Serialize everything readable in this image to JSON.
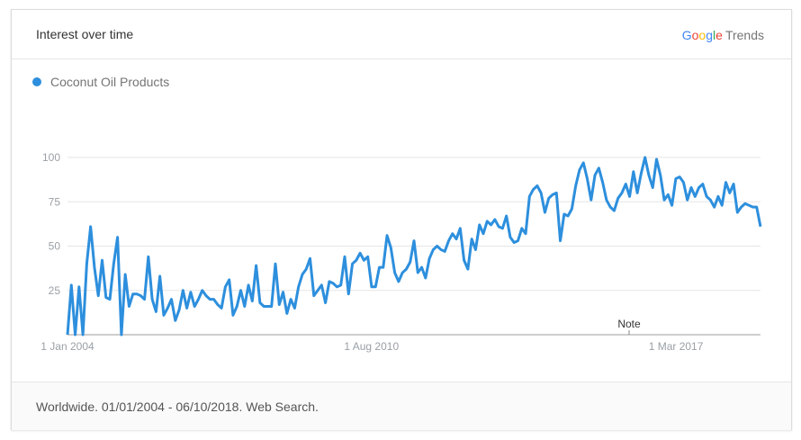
{
  "header": {
    "title": "Interest over time",
    "brand": {
      "google": [
        "G",
        "o",
        "o",
        "g",
        "l",
        "e"
      ],
      "trends": "Trends"
    }
  },
  "legend": {
    "label": "Coconut Oil Products",
    "color": "#2d8fdd"
  },
  "note": "Note",
  "footer": {
    "text": "Worldwide. 01/01/2004 - 06/10/2018. Web Search."
  },
  "chart_data": {
    "type": "line",
    "title": "",
    "xlabel": "",
    "ylabel": "",
    "ylim": [
      0,
      100
    ],
    "yticks": [
      "25",
      "50",
      "75",
      "100"
    ],
    "xticks": [
      {
        "label": "1 Jan 2004",
        "year": 2004.0
      },
      {
        "label": "1 Aug 2010",
        "year": 2010.58
      },
      {
        "label": "1 Mar 2017",
        "year": 2017.17
      }
    ],
    "grid": true,
    "legend_position": "top-left",
    "x_start": "2004-01",
    "x_end": "2018-10",
    "x_interval": "month",
    "series": [
      {
        "name": "Coconut Oil Products",
        "color": "#2d8fdd",
        "values": [
          0,
          28,
          0,
          27,
          0,
          40,
          61,
          38,
          22,
          42,
          21,
          20,
          40,
          55,
          0,
          34,
          16,
          23,
          23,
          22,
          20,
          44,
          20,
          13,
          33,
          11,
          15,
          20,
          8,
          14,
          25,
          15,
          24,
          16,
          20,
          25,
          22,
          20,
          20,
          17,
          15,
          27,
          31,
          11,
          16,
          25,
          16,
          28,
          19,
          39,
          18,
          16,
          16,
          16,
          40,
          17,
          24,
          12,
          20,
          15,
          27,
          34,
          37,
          43,
          22,
          25,
          28,
          18,
          30,
          29,
          27,
          28,
          44,
          23,
          40,
          42,
          46,
          42,
          44,
          27,
          27,
          38,
          38,
          56,
          49,
          35,
          30,
          35,
          37,
          41,
          53,
          35,
          38,
          32,
          43,
          48,
          50,
          48,
          47,
          53,
          57,
          54,
          60,
          42,
          37,
          54,
          48,
          62,
          57,
          64,
          62,
          65,
          61,
          60,
          67,
          55,
          52,
          53,
          60,
          57,
          78,
          82,
          84,
          80,
          69,
          77,
          79,
          80,
          53,
          68,
          67,
          71,
          84,
          93,
          97,
          88,
          76,
          90,
          94,
          86,
          76,
          72,
          70,
          77,
          80,
          85,
          78,
          92,
          80,
          91,
          100,
          90,
          83,
          99,
          90,
          76,
          79,
          73,
          88,
          89,
          86,
          76,
          83,
          78,
          83,
          85,
          78,
          76,
          72,
          78,
          73,
          86,
          80,
          85,
          69,
          72,
          74,
          73,
          72,
          72,
          61
        ]
      }
    ]
  }
}
